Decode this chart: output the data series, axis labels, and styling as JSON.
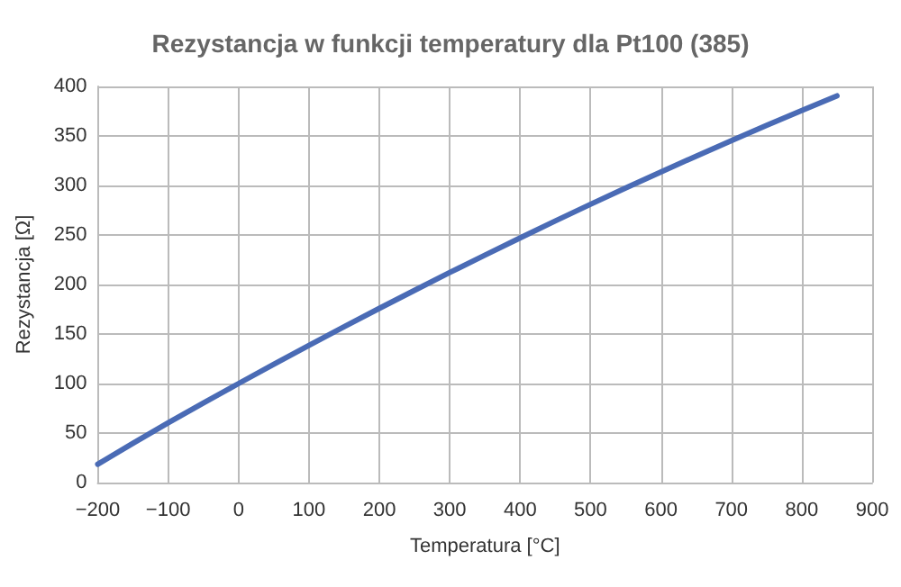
{
  "chart_data": {
    "type": "line",
    "title": "Rezystancja w funkcji temperatury dla Pt100 (385)",
    "xlabel": "Temperatura [°C]",
    "ylabel": "Rezystancja [Ω]",
    "x": [
      -200,
      -150,
      -100,
      -50,
      0,
      50,
      100,
      150,
      200,
      250,
      300,
      350,
      400,
      450,
      500,
      550,
      600,
      650,
      700,
      750,
      800,
      850
    ],
    "series": [
      {
        "color": "#4a6bb5",
        "values": [
          18.5,
          39.7,
          60.3,
          80.3,
          100,
          119.4,
          138.5,
          157.3,
          175.9,
          194.1,
          212.1,
          229.7,
          247.1,
          264.2,
          281,
          297.5,
          313.7,
          329.6,
          345.3,
          360.6,
          375.7,
          390.5
        ]
      }
    ],
    "xlim": [
      -200,
      900
    ],
    "xticks": [
      {
        "value": -200,
        "label": "−200"
      },
      {
        "value": -100,
        "label": "−100"
      },
      0,
      100,
      200,
      300,
      400,
      500,
      600,
      700,
      800,
      900
    ],
    "ylim": [
      0,
      400
    ],
    "yticks": [
      0,
      50,
      100,
      150,
      200,
      250,
      300,
      350,
      400
    ],
    "grid": true,
    "marker": "none",
    "line_style": "solid"
  }
}
